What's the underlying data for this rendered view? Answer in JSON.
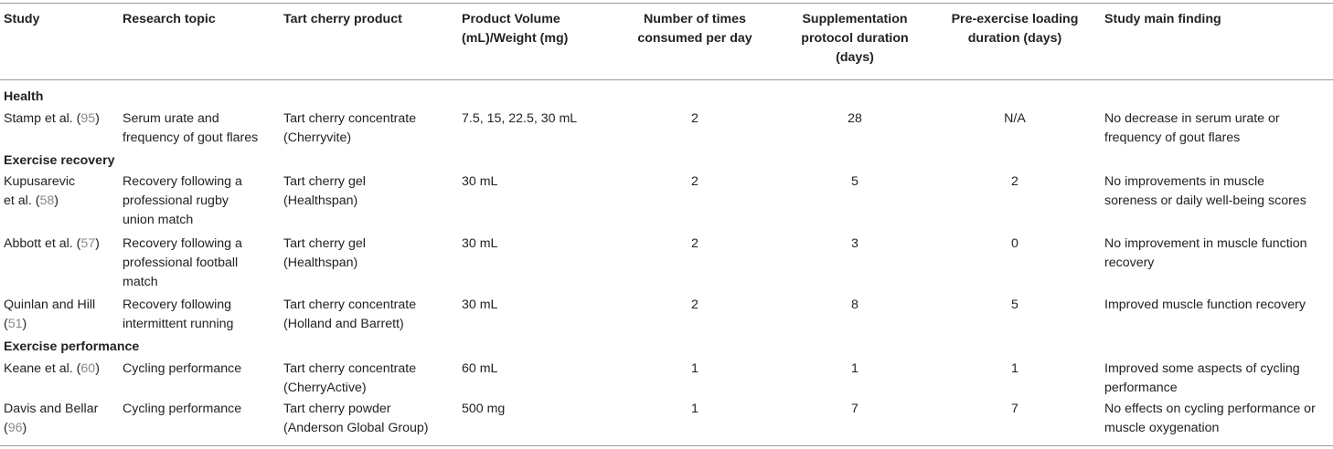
{
  "header": {
    "study": "Study",
    "topic": "Research topic",
    "product": "Tart cherry product",
    "volume": [
      "Product Volume",
      "(mL)/Weight (mg)"
    ],
    "times": [
      "Number of times",
      "consumed per day"
    ],
    "duration": [
      "Supplementation",
      "protocol duration",
      "(days)"
    ],
    "loading": [
      "Pre-exercise loading",
      "duration (days)"
    ],
    "finding": "Study main finding"
  },
  "sections": {
    "health": "Health",
    "recovery": "Exercise recovery",
    "performance": "Exercise performance"
  },
  "rows": [
    {
      "study": [
        "Stamp et al. (",
        "95",
        ")"
      ],
      "topic": [
        "Serum urate and",
        "frequency of gout flares"
      ],
      "product": [
        "Tart cherry concentrate",
        "(Cherryvite)"
      ],
      "volume": "7.5, 15, 22.5, 30 mL",
      "times": "2",
      "duration": "28",
      "loading": "N/A",
      "finding": [
        "No decrease in serum urate or",
        "frequency of gout flares"
      ]
    },
    {
      "study": [
        "Kupusarevic",
        "et al. (",
        "58",
        ")"
      ],
      "topic": [
        "Recovery following a",
        "professional rugby",
        "union match"
      ],
      "product": [
        "Tart cherry gel",
        "(Healthspan)"
      ],
      "volume": "30 mL",
      "times": "2",
      "duration": "5",
      "loading": "2",
      "finding": [
        "No improvements in muscle",
        "soreness or daily well-being scores"
      ]
    },
    {
      "study": [
        "Abbott et al. (",
        "57",
        ")"
      ],
      "topic": [
        "Recovery following a",
        "professional football",
        "match"
      ],
      "product": [
        "Tart cherry gel",
        "(Healthspan)"
      ],
      "volume": "30 mL",
      "times": "2",
      "duration": "3",
      "loading": "0",
      "finding": [
        "No improvement in muscle function",
        "recovery"
      ]
    },
    {
      "study": [
        "Quinlan and Hill",
        "(",
        "51",
        ")"
      ],
      "topic": [
        "Recovery following",
        "intermittent running"
      ],
      "product": [
        "Tart cherry concentrate",
        "(Holland and Barrett)"
      ],
      "volume": "30 mL",
      "times": "2",
      "duration": "8",
      "loading": "5",
      "finding": [
        "Improved muscle function recovery"
      ]
    },
    {
      "study": [
        "Keane et al. (",
        "60",
        ")"
      ],
      "topic": [
        "Cycling performance"
      ],
      "product": [
        "Tart cherry concentrate",
        "(CherryActive)"
      ],
      "volume": "60 mL",
      "times": "1",
      "duration": "1",
      "loading": "1",
      "finding": [
        "Improved some aspects of cycling",
        "performance"
      ]
    },
    {
      "study": [
        "Davis and Bellar",
        "(",
        "96",
        ")"
      ],
      "topic": [
        "Cycling performance"
      ],
      "product": [
        "Tart cherry powder",
        "(Anderson Global Group)"
      ],
      "volume": "500 mg",
      "times": "1",
      "duration": "7",
      "loading": "7",
      "finding": [
        "No effects on cycling performance or",
        "muscle oxygenation"
      ]
    }
  ]
}
